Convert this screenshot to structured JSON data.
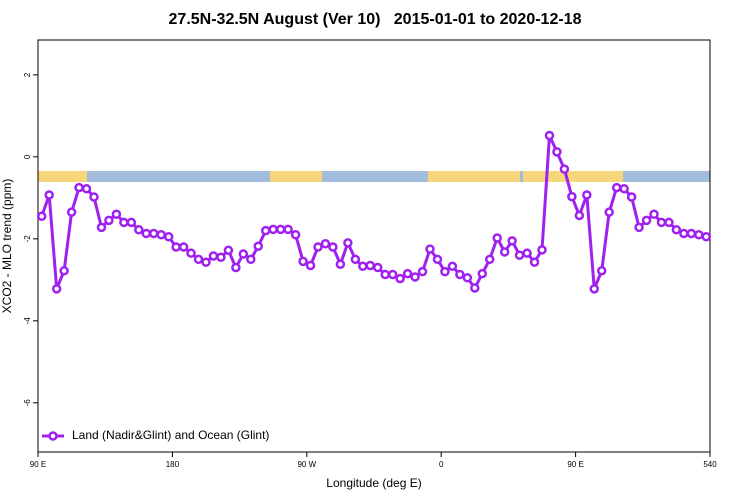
{
  "chart_data": {
    "type": "line",
    "title": "27.5N-32.5N August (Ver 10)   2015-01-01 to 2020-12-18",
    "x_label": "Longitude (deg E)",
    "y_label": "XCO2 - MLO trend (ppm)",
    "xlim": [
      90,
      540
    ],
    "ylim": [
      -7.2,
      2.85
    ],
    "xticks": [
      {
        "value": 90,
        "label": "90 E"
      },
      180,
      {
        "value": 270,
        "label": "90 W"
      },
      {
        "value": 360,
        "label": "0"
      },
      {
        "value": 450,
        "label": "90 E"
      },
      540
    ],
    "yticks": [
      -6,
      -4,
      -2,
      0,
      2
    ],
    "grid": false,
    "legend_position": "bottom-left",
    "series": [
      {
        "name": "Land (Nadir&Glint) and Ocean (Glint)",
        "color": "#a020f0",
        "x": [
          92.5,
          97.5,
          102.5,
          107.5,
          112.5,
          117.5,
          122.5,
          127.5,
          132.5,
          137.5,
          142.5,
          147.5,
          152.5,
          157.5,
          162.5,
          167.5,
          172.5,
          177.5,
          182.5,
          187.5,
          192.5,
          197.5,
          202.5,
          207.5,
          212.5,
          217.5,
          222.5,
          227.5,
          232.5,
          237.5,
          242.5,
          247.5,
          252.5,
          257.5,
          262.5,
          267.5,
          272.5,
          277.5,
          282.5,
          287.5,
          292.5,
          297.5,
          302.5,
          307.5,
          312.5,
          317.5,
          322.5,
          327.5,
          332.5,
          337.5,
          342.5,
          347.5,
          352.5,
          357.5,
          362.5,
          367.5,
          372.5,
          377.5,
          382.5,
          387.5,
          392.5,
          397.5,
          402.5,
          407.5,
          412.5,
          417.5,
          422.5,
          427.5,
          432.5,
          437.5,
          442.5,
          447.5,
          452.5,
          457.5,
          462.5,
          467.5,
          472.5,
          477.5,
          482.5,
          487.5,
          492.5,
          497.5,
          502.5,
          507.5,
          512.5,
          517.5,
          522.5,
          527.5,
          532.5,
          537.5
        ],
        "values": [
          -1.45,
          -0.93,
          -3.22,
          -2.78,
          -1.35,
          -0.75,
          -0.78,
          -0.98,
          -1.72,
          -1.55,
          -1.4,
          -1.6,
          -1.6,
          -1.78,
          -1.87,
          -1.87,
          -1.9,
          -1.95,
          -2.2,
          -2.2,
          -2.35,
          -2.5,
          -2.57,
          -2.42,
          -2.45,
          -2.28,
          -2.7,
          -2.37,
          -2.5,
          -2.18,
          -1.8,
          -1.77,
          -1.77,
          -1.77,
          -1.9,
          -2.55,
          -2.65,
          -2.2,
          -2.12,
          -2.2,
          -2.62,
          -2.1,
          -2.5,
          -2.67,
          -2.65,
          -2.7,
          -2.87,
          -2.87,
          -2.97,
          -2.85,
          -2.93,
          -2.8,
          -2.25,
          -2.5,
          -2.8,
          -2.67,
          -2.87,
          -2.95,
          -3.2,
          -2.85,
          -2.5,
          -1.98,
          -2.32,
          -2.05,
          -2.4,
          -2.35,
          -2.57,
          -2.27,
          0.52,
          0.12,
          -0.3,
          -0.97,
          -1.43,
          -0.93,
          -3.22,
          -2.78,
          -1.35,
          -0.75,
          -0.78,
          -0.98,
          -1.72,
          -1.55,
          -1.4,
          -1.6,
          -1.6,
          -1.78,
          -1.87,
          -1.87,
          -1.9,
          -1.95
        ]
      }
    ]
  }
}
